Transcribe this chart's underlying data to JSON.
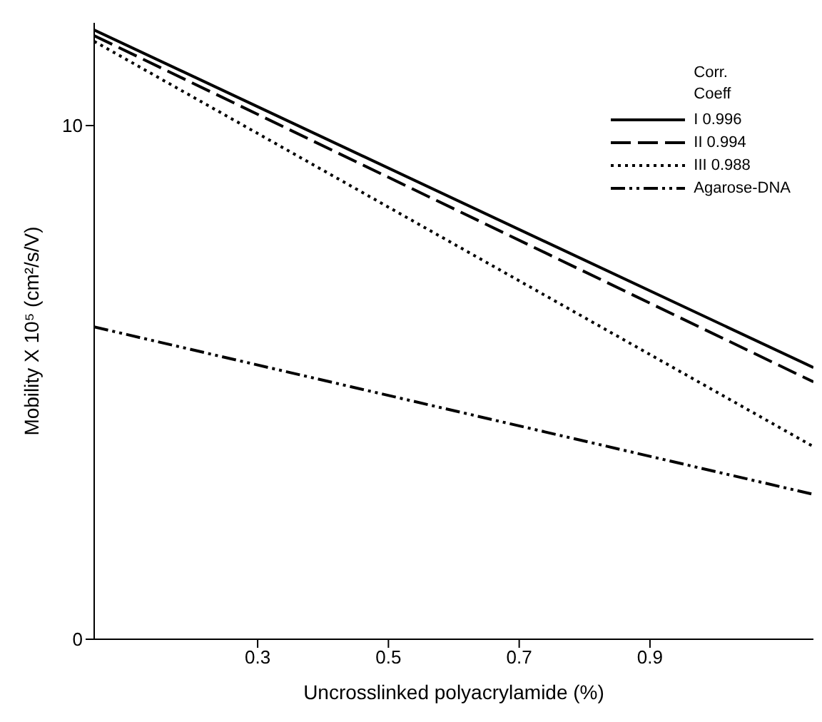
{
  "chart_data": {
    "type": "line",
    "xlabel": "Uncrosslinked polyacrylamide (%)",
    "ylabel": "Mobility X 10⁵ (cm²/s/V)",
    "legend_title": "Corr. Coeff",
    "legend": "top right",
    "grid": false,
    "marker": "none",
    "xlim": [
      0.05,
      1.15
    ],
    "xticks": [
      0.3,
      0.5,
      0.7,
      0.9
    ],
    "ylim": [
      0,
      12
    ],
    "yticks": [
      0,
      10
    ],
    "x": [
      0.05,
      1.15
    ],
    "series": [
      {
        "name": "I 0.996",
        "color": "#000000",
        "line_style": "solid",
        "values": [
          11.86,
          5.29
        ]
      },
      {
        "name": "II 0.994",
        "color": "#000000",
        "line_style": "dashed",
        "values": [
          11.75,
          5.01
        ]
      },
      {
        "name": "III 0.988",
        "color": "#000000",
        "line_style": "dotted",
        "values": [
          11.64,
          3.75
        ]
      },
      {
        "name": "Agarose-DNA",
        "color": "#000000",
        "line_style": "dashdot",
        "values": [
          6.08,
          2.82
        ]
      }
    ]
  }
}
